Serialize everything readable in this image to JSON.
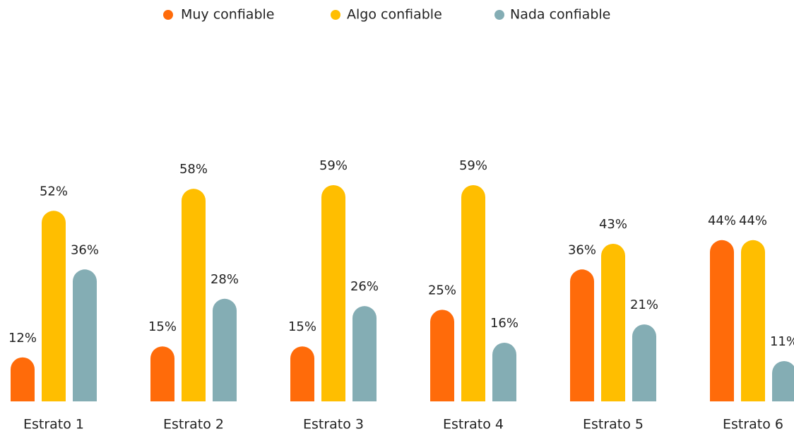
{
  "chart_data": {
    "type": "bar",
    "categories": [
      "Estrato 1",
      "Estrato 2",
      "Estrato 3",
      "Estrato 4",
      "Estrato 5",
      "Estrato 6"
    ],
    "series": [
      {
        "name": "Muy confiable",
        "color": "#ff6b0a",
        "values": [
          12,
          15,
          15,
          25,
          36,
          44
        ],
        "value_labels": [
          "12%",
          "15%",
          "15%",
          "25%",
          "36%",
          "44%"
        ]
      },
      {
        "name": "Algo confiable",
        "color": "#ffbe00",
        "values": [
          52,
          58,
          59,
          59,
          43,
          44
        ],
        "value_labels": [
          "52%",
          "58%",
          "59%",
          "59%",
          "43%",
          "44%"
        ]
      },
      {
        "name": "Nada confiable",
        "color": "#84adb4",
        "values": [
          36,
          28,
          26,
          16,
          21,
          11
        ],
        "value_labels": [
          "36%",
          "28%",
          "26%",
          "16%",
          "21%",
          "11%"
        ]
      }
    ],
    "legend": "top"
  }
}
